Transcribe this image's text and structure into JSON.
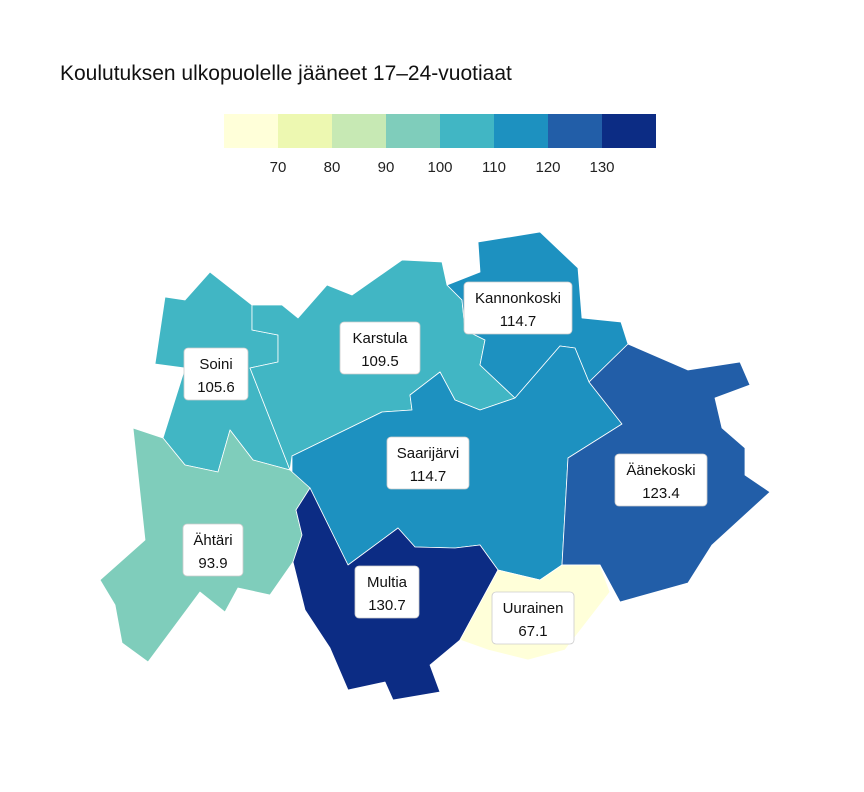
{
  "title": "Koulutuksen ulkopuolelle jääneet 17–24-vuotiaat",
  "legend": {
    "colors": [
      "#ffffd9",
      "#edf8b1",
      "#c7e9b4",
      "#7fcdbb",
      "#41b6c4",
      "#1d91c0",
      "#225ea8",
      "#0c2c84"
    ],
    "ticks": [
      "70",
      "80",
      "90",
      "100",
      "110",
      "120",
      "130"
    ]
  },
  "municipalities": [
    {
      "name": "Soini",
      "value": "105.6",
      "color": "#41b6c4"
    },
    {
      "name": "Karstula",
      "value": "109.5",
      "color": "#41b6c4"
    },
    {
      "name": "Kannonkoski",
      "value": "114.7",
      "color": "#1d91c0"
    },
    {
      "name": "Saarijärvi",
      "value": "114.7",
      "color": "#1d91c0"
    },
    {
      "name": "Äänekoski",
      "value": "123.4",
      "color": "#225ea8"
    },
    {
      "name": "Ähtäri",
      "value": "93.9",
      "color": "#7fcdbb"
    },
    {
      "name": "Multia",
      "value": "130.7",
      "color": "#0c2c84"
    },
    {
      "name": "Uurainen",
      "value": "67.1",
      "color": "#ffffd9"
    }
  ]
}
